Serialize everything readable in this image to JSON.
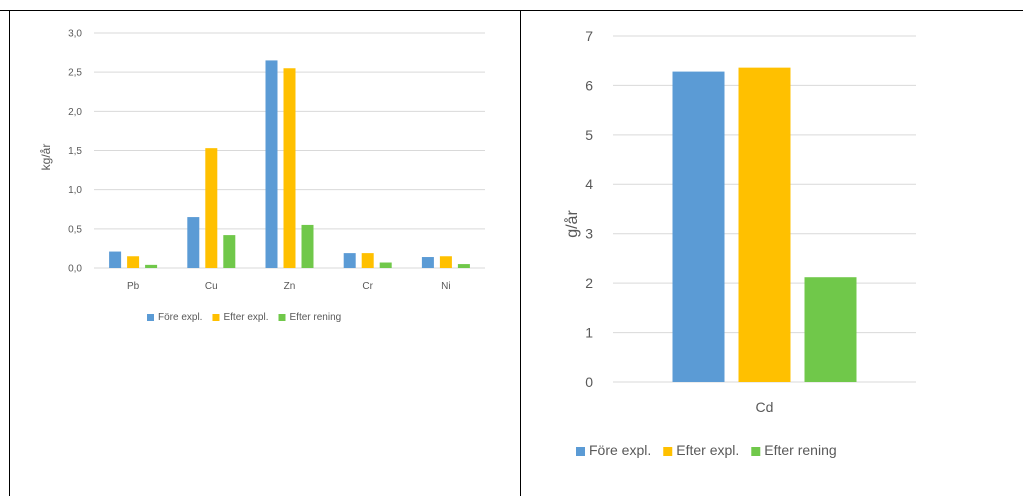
{
  "colors": {
    "fore": "#5b9bd5",
    "efter_expl": "#ffc000",
    "efter_rening": "#70c84a",
    "grid": "#d9d9d9",
    "text": "#595959"
  },
  "chart_data": [
    {
      "type": "bar",
      "categories": [
        "Pb",
        "Cu",
        "Zn",
        "Cr",
        "Ni"
      ],
      "series": [
        {
          "name": "Före expl.",
          "values": [
            0.21,
            0.65,
            2.65,
            0.19,
            0.14
          ]
        },
        {
          "name": "Efter expl.",
          "values": [
            0.15,
            1.53,
            2.55,
            0.19,
            0.15
          ]
        },
        {
          "name": "Efter rening",
          "values": [
            0.04,
            0.42,
            0.55,
            0.07,
            0.05
          ]
        }
      ],
      "ylabel": "kg/år",
      "ylim": [
        0,
        3.0
      ],
      "yticks": [
        "0,0",
        "0,5",
        "1,0",
        "1,5",
        "2,0",
        "2,5",
        "3,0"
      ],
      "grid": true,
      "legend_position": "bottom"
    },
    {
      "type": "bar",
      "categories": [
        "Cd"
      ],
      "series": [
        {
          "name": "Före expl.",
          "values": [
            6.28
          ]
        },
        {
          "name": "Efter expl.",
          "values": [
            6.36
          ]
        },
        {
          "name": "Efter rening",
          "values": [
            2.12
          ]
        }
      ],
      "ylabel": "g/år",
      "ylim": [
        0,
        7
      ],
      "yticks": [
        "0",
        "1",
        "2",
        "3",
        "4",
        "5",
        "6",
        "7"
      ],
      "grid": true,
      "legend_position": "bottom"
    }
  ]
}
